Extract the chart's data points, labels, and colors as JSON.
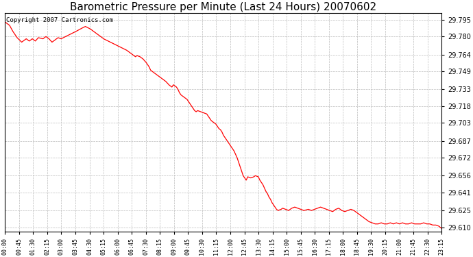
{
  "title": "Barometric Pressure per Minute (Last 24 Hours) 20070602",
  "copyright_text": "Copyright 2007 Cartronics.com",
  "line_color": "#ff0000",
  "bg_color": "#ffffff",
  "plot_bg_color": "#ffffff",
  "grid_color": "#bbbbbb",
  "title_fontsize": 11,
  "yticks": [
    29.795,
    29.78,
    29.764,
    29.749,
    29.733,
    29.718,
    29.703,
    29.687,
    29.672,
    29.656,
    29.641,
    29.625,
    29.61
  ],
  "ylim": [
    29.606,
    29.801
  ],
  "xtick_labels": [
    "00:00",
    "00:45",
    "01:30",
    "02:15",
    "03:00",
    "03:45",
    "04:30",
    "05:15",
    "06:00",
    "06:45",
    "07:30",
    "08:15",
    "09:00",
    "09:45",
    "10:30",
    "11:15",
    "12:00",
    "12:45",
    "13:30",
    "14:15",
    "15:00",
    "15:45",
    "16:30",
    "17:15",
    "18:00",
    "18:45",
    "19:30",
    "20:15",
    "21:00",
    "21:45",
    "22:30",
    "23:15"
  ],
  "num_points": 1440,
  "key_points": [
    [
      0,
      29.793
    ],
    [
      15,
      29.79
    ],
    [
      25,
      29.785
    ],
    [
      40,
      29.779
    ],
    [
      55,
      29.775
    ],
    [
      70,
      29.778
    ],
    [
      80,
      29.776
    ],
    [
      90,
      29.778
    ],
    [
      100,
      29.776
    ],
    [
      110,
      29.779
    ],
    [
      125,
      29.778
    ],
    [
      135,
      29.78
    ],
    [
      145,
      29.778
    ],
    [
      155,
      29.775
    ],
    [
      165,
      29.777
    ],
    [
      175,
      29.779
    ],
    [
      185,
      29.778
    ],
    [
      200,
      29.78
    ],
    [
      215,
      29.782
    ],
    [
      230,
      29.784
    ],
    [
      250,
      29.787
    ],
    [
      265,
      29.789
    ],
    [
      280,
      29.787
    ],
    [
      295,
      29.784
    ],
    [
      310,
      29.781
    ],
    [
      325,
      29.778
    ],
    [
      340,
      29.776
    ],
    [
      355,
      29.774
    ],
    [
      370,
      29.772
    ],
    [
      385,
      29.77
    ],
    [
      400,
      29.768
    ],
    [
      415,
      29.765
    ],
    [
      420,
      29.764
    ],
    [
      430,
      29.762
    ],
    [
      435,
      29.763
    ],
    [
      445,
      29.762
    ],
    [
      455,
      29.76
    ],
    [
      465,
      29.757
    ],
    [
      475,
      29.753
    ],
    [
      480,
      29.75
    ],
    [
      490,
      29.748
    ],
    [
      500,
      29.746
    ],
    [
      510,
      29.744
    ],
    [
      520,
      29.742
    ],
    [
      530,
      29.74
    ],
    [
      540,
      29.737
    ],
    [
      550,
      29.735
    ],
    [
      555,
      29.737
    ],
    [
      565,
      29.735
    ],
    [
      570,
      29.733
    ],
    [
      575,
      29.73
    ],
    [
      580,
      29.728
    ],
    [
      590,
      29.726
    ],
    [
      600,
      29.724
    ],
    [
      605,
      29.722
    ],
    [
      610,
      29.72
    ],
    [
      615,
      29.718
    ],
    [
      620,
      29.716
    ],
    [
      625,
      29.714
    ],
    [
      630,
      29.713
    ],
    [
      635,
      29.714
    ],
    [
      645,
      29.713
    ],
    [
      655,
      29.712
    ],
    [
      665,
      29.711
    ],
    [
      670,
      29.709
    ],
    [
      675,
      29.707
    ],
    [
      680,
      29.705
    ],
    [
      685,
      29.704
    ],
    [
      690,
      29.703
    ],
    [
      695,
      29.702
    ],
    [
      700,
      29.7
    ],
    [
      705,
      29.698
    ],
    [
      710,
      29.697
    ],
    [
      715,
      29.695
    ],
    [
      720,
      29.692
    ],
    [
      725,
      29.69
    ],
    [
      730,
      29.688
    ],
    [
      735,
      29.686
    ],
    [
      740,
      29.684
    ],
    [
      745,
      29.682
    ],
    [
      750,
      29.68
    ],
    [
      755,
      29.678
    ],
    [
      760,
      29.675
    ],
    [
      765,
      29.672
    ],
    [
      770,
      29.668
    ],
    [
      775,
      29.664
    ],
    [
      780,
      29.66
    ],
    [
      785,
      29.656
    ],
    [
      790,
      29.654
    ],
    [
      795,
      29.652
    ],
    [
      800,
      29.655
    ],
    [
      810,
      29.654
    ],
    [
      820,
      29.655
    ],
    [
      825,
      29.656
    ],
    [
      835,
      29.655
    ],
    [
      840,
      29.652
    ],
    [
      845,
      29.65
    ],
    [
      850,
      29.648
    ],
    [
      855,
      29.645
    ],
    [
      860,
      29.642
    ],
    [
      865,
      29.64
    ],
    [
      870,
      29.637
    ],
    [
      875,
      29.635
    ],
    [
      880,
      29.632
    ],
    [
      885,
      29.63
    ],
    [
      890,
      29.628
    ],
    [
      895,
      29.626
    ],
    [
      900,
      29.625
    ],
    [
      910,
      29.626
    ],
    [
      915,
      29.627
    ],
    [
      925,
      29.626
    ],
    [
      935,
      29.625
    ],
    [
      940,
      29.626
    ],
    [
      945,
      29.627
    ],
    [
      955,
      29.628
    ],
    [
      965,
      29.627
    ],
    [
      975,
      29.626
    ],
    [
      985,
      29.625
    ],
    [
      1000,
      29.626
    ],
    [
      1010,
      29.625
    ],
    [
      1020,
      29.626
    ],
    [
      1030,
      29.627
    ],
    [
      1040,
      29.628
    ],
    [
      1050,
      29.627
    ],
    [
      1060,
      29.626
    ],
    [
      1070,
      29.625
    ],
    [
      1080,
      29.624
    ],
    [
      1090,
      29.626
    ],
    [
      1100,
      29.627
    ],
    [
      1110,
      29.625
    ],
    [
      1120,
      29.624
    ],
    [
      1130,
      29.625
    ],
    [
      1140,
      29.626
    ],
    [
      1150,
      29.625
    ],
    [
      1160,
      29.623
    ],
    [
      1165,
      29.622
    ],
    [
      1170,
      29.621
    ],
    [
      1175,
      29.62
    ],
    [
      1180,
      29.619
    ],
    [
      1185,
      29.618
    ],
    [
      1190,
      29.617
    ],
    [
      1195,
      29.616
    ],
    [
      1200,
      29.615
    ],
    [
      1210,
      29.614
    ],
    [
      1220,
      29.613
    ],
    [
      1230,
      29.613
    ],
    [
      1240,
      29.614
    ],
    [
      1250,
      29.613
    ],
    [
      1260,
      29.613
    ],
    [
      1270,
      29.614
    ],
    [
      1280,
      29.613
    ],
    [
      1290,
      29.614
    ],
    [
      1300,
      29.613
    ],
    [
      1310,
      29.614
    ],
    [
      1320,
      29.613
    ],
    [
      1330,
      29.613
    ],
    [
      1340,
      29.614
    ],
    [
      1350,
      29.613
    ],
    [
      1360,
      29.613
    ],
    [
      1370,
      29.613
    ],
    [
      1380,
      29.614
    ],
    [
      1390,
      29.613
    ],
    [
      1400,
      29.613
    ],
    [
      1410,
      29.612
    ],
    [
      1420,
      29.612
    ],
    [
      1430,
      29.611
    ],
    [
      1439,
      29.609
    ]
  ]
}
